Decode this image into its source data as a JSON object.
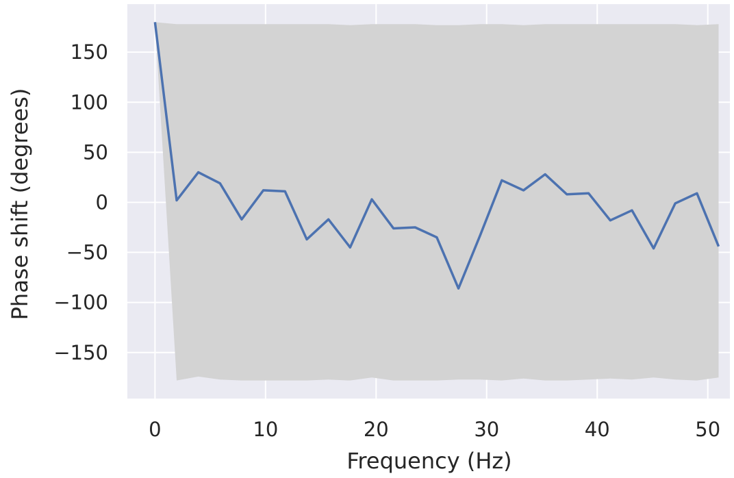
{
  "chart_data": {
    "type": "line",
    "title": "",
    "xlabel": "Frequency (Hz)",
    "ylabel": "Phase shift (degrees)",
    "xlim": [
      -2.5,
      52.0
    ],
    "ylim": [
      -196,
      198
    ],
    "xticks": [
      0,
      10,
      20,
      30,
      40,
      50
    ],
    "yticks": [
      -150,
      -100,
      -50,
      0,
      50,
      100,
      150
    ],
    "xtick_labels": [
      "0",
      "10",
      "20",
      "30",
      "40",
      "50"
    ],
    "ytick_labels": [
      "−150",
      "−100",
      "−50",
      "0",
      "50",
      "100",
      "150"
    ],
    "grid": true,
    "legend": "none",
    "colors": {
      "background": "#eaeaf2",
      "grid": "#ffffff",
      "line": "#4c72b0",
      "band": "#d3d3d3",
      "text": "#262626"
    },
    "series": [
      {
        "x": [
          0,
          1.96,
          3.92,
          5.88,
          7.84,
          9.8,
          11.76,
          13.73,
          15.69,
          17.65,
          19.61,
          21.57,
          23.53,
          25.49,
          27.45,
          29.41,
          31.37,
          33.33,
          35.29,
          37.25,
          39.22,
          41.18,
          43.14,
          45.1,
          47.06,
          49.02,
          50.98
        ],
        "y": [
          180,
          2,
          30,
          19,
          -17,
          12,
          11,
          -37,
          -17,
          -45,
          3,
          -26,
          -25,
          -35,
          -86,
          -33,
          22,
          12,
          28,
          8,
          9,
          -18,
          -8,
          -46,
          -1,
          9,
          -44
        ]
      }
    ],
    "band": {
      "x": [
        0,
        1.96,
        3.92,
        5.88,
        7.84,
        9.8,
        11.76,
        13.73,
        15.69,
        17.65,
        19.61,
        21.57,
        23.53,
        25.49,
        27.45,
        29.41,
        31.37,
        33.33,
        35.29,
        37.25,
        39.22,
        41.18,
        43.14,
        45.1,
        47.06,
        49.02,
        50.98
      ],
      "upper": [
        180,
        178,
        178,
        178,
        178,
        178,
        178,
        178,
        178,
        177,
        178,
        178,
        178,
        177,
        177,
        178,
        178,
        177,
        178,
        178,
        178,
        178,
        178,
        178,
        178,
        177,
        178
      ],
      "lower": [
        180,
        -178,
        -174,
        -177,
        -178,
        -178,
        -178,
        -178,
        -177,
        -178,
        -175,
        -178,
        -178,
        -178,
        -177,
        -177,
        -178,
        -176,
        -178,
        -178,
        -177,
        -176,
        -177,
        -175,
        -177,
        -178,
        -175
      ]
    }
  }
}
